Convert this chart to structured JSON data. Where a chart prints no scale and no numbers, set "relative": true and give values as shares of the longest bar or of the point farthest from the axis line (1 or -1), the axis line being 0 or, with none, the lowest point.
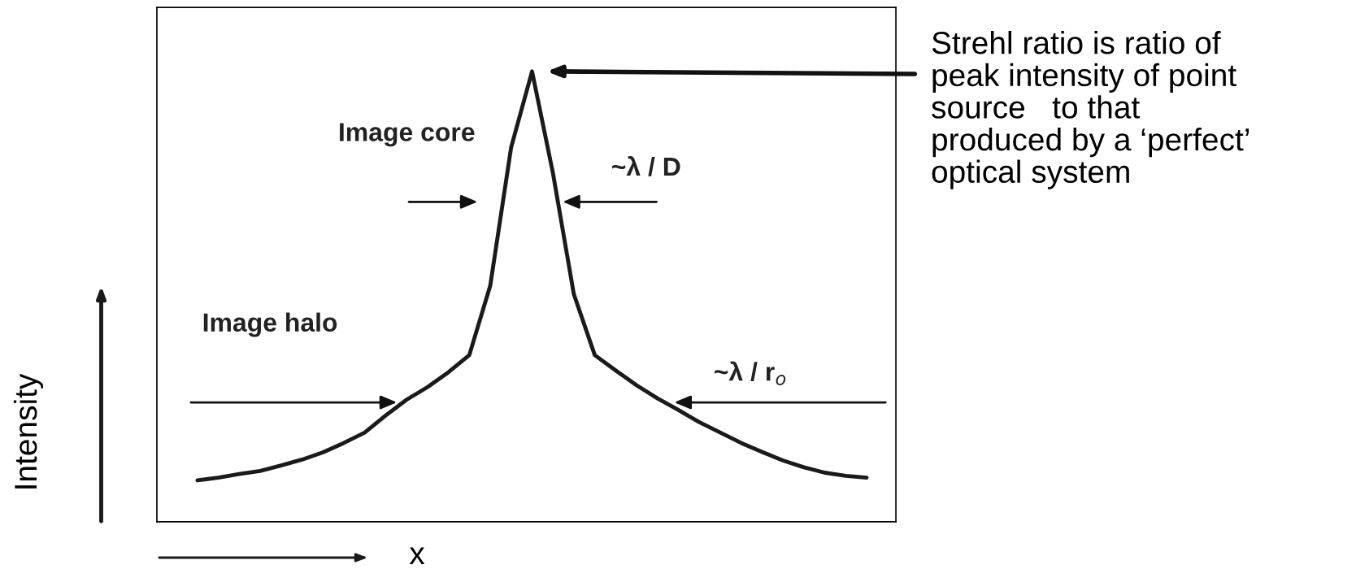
{
  "chart_data": {
    "type": "line",
    "relative": true,
    "categories": [
      null,
      null,
      null,
      null,
      null,
      null,
      null,
      null,
      null,
      null,
      null,
      null,
      null,
      null,
      null,
      null,
      null,
      null,
      null,
      null,
      null,
      null,
      null,
      null,
      null,
      null,
      null,
      null,
      null,
      null,
      null,
      null,
      null
    ],
    "series": [
      {
        "color": "#1a1a1a",
        "values": [
          0.092,
          0.098,
          0.106,
          0.113,
          0.125,
          0.138,
          0.154,
          0.175,
          0.198,
          0.236,
          0.271,
          0.299,
          0.332,
          0.37,
          0.524,
          0.831,
          1,
          0.774,
          0.505,
          0.37,
          0.336,
          0.303,
          0.274,
          0.248,
          0.221,
          0.198,
          0.175,
          0.155,
          0.136,
          0.121,
          0.109,
          0.102,
          0.098
        ]
      }
    ],
    "xlabel": "x",
    "ylabel": "Intensity",
    "annotations": [
      "Image core",
      "Image halo",
      "~λ / D",
      "~λ / r$_{o}$",
      "Strehl ratio is ratio of\npeak intensity of point\nsource   to that\nproduced by a ‘perfect’\noptical system"
    ]
  }
}
